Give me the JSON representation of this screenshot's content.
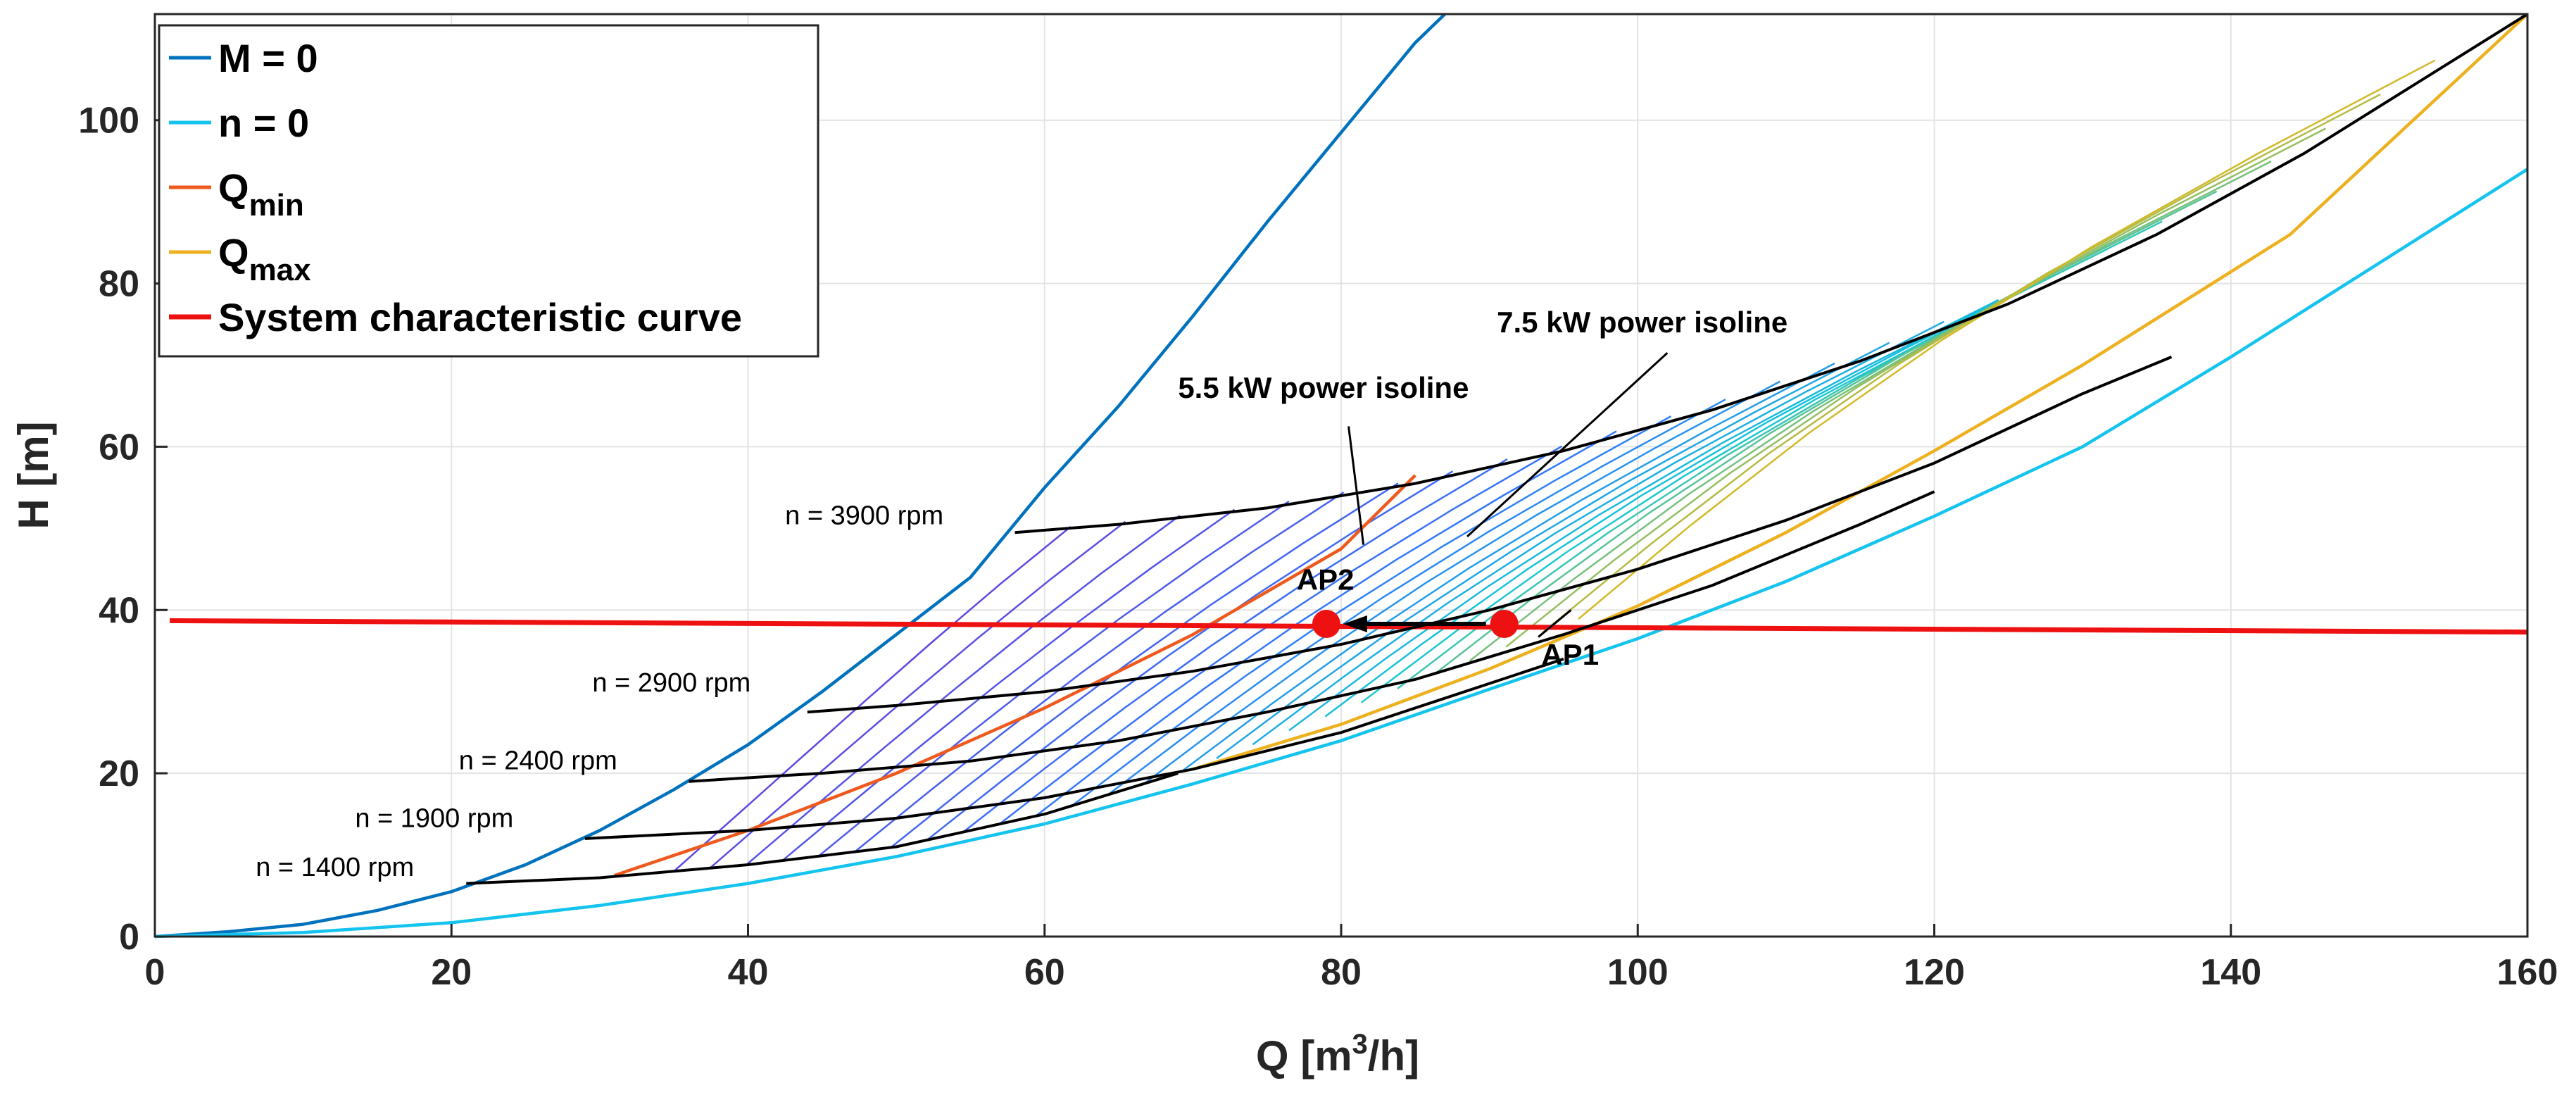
{
  "chart_data": {
    "type": "line",
    "title": "",
    "xlabel": "Q [m",
    "xlabel_sup": "3",
    "xlabel_tail": "/h]",
    "ylabel": "H [m]",
    "xlim": [
      0,
      160
    ],
    "ylim": [
      0,
      113
    ],
    "xticks": [
      0,
      20,
      40,
      60,
      80,
      100,
      120,
      140,
      160
    ],
    "yticks": [
      0,
      20,
      40,
      60,
      80,
      100
    ],
    "grid": true,
    "legend_position": "top-left",
    "legend": [
      {
        "label": "M = 0",
        "sub": "",
        "color": "#0072BD"
      },
      {
        "label": "n = 0",
        "sub": "",
        "color": "#14C4EE"
      },
      {
        "label": "Q",
        "sub": "min",
        "color": "#EE5A1E"
      },
      {
        "label": "Q",
        "sub": "max",
        "color": "#EDB120"
      },
      {
        "label": "System characteristic curve",
        "sub": "",
        "color": "#EE1111"
      }
    ],
    "series": [
      {
        "name": "M = 0",
        "color": "#0072BD",
        "x": [
          0,
          5,
          10,
          15,
          20,
          25,
          30,
          35,
          40,
          45,
          50,
          55,
          60,
          65,
          70,
          75,
          80,
          85,
          87
        ],
        "y": [
          0,
          0.6,
          1.5,
          3.2,
          5.5,
          8.8,
          13,
          18,
          23.5,
          30,
          37,
          44,
          55,
          65,
          76,
          87.5,
          98.5,
          109.5,
          113
        ]
      },
      {
        "name": "n = 0",
        "color": "#14C4EE",
        "x": [
          0,
          10,
          20,
          30,
          40,
          50,
          60,
          70,
          80,
          90,
          100,
          110,
          120,
          130,
          140,
          150,
          160
        ],
        "y": [
          0,
          0.5,
          1.7,
          3.8,
          6.5,
          9.8,
          13.8,
          18.7,
          24,
          30.3,
          36.5,
          43.5,
          51.5,
          60,
          71,
          82.5,
          94
        ]
      },
      {
        "name": "Qmin",
        "color": "#EE5A1E",
        "x": [
          31,
          40,
          50,
          60,
          70,
          80,
          85
        ],
        "y": [
          7.5,
          13,
          20,
          28,
          37,
          47.5,
          56.5
        ]
      },
      {
        "name": "Qmax",
        "color": "#EDB120",
        "x": [
          70,
          80,
          90,
          100,
          110,
          120,
          130,
          144,
          160
        ],
        "y": [
          20.5,
          26,
          32.8,
          40.5,
          49.5,
          59.5,
          70,
          86,
          113
        ]
      },
      {
        "name": "System characteristic curve",
        "color": "#EE1111",
        "x": [
          1,
          160
        ],
        "y": [
          38.7,
          37.3
        ]
      },
      {
        "name": "n = 3900 rpm",
        "color": "#000000",
        "x": [
          58,
          65,
          75,
          85,
          95,
          105,
          115,
          125,
          135,
          145,
          160
        ],
        "y": [
          49.5,
          50.5,
          52.5,
          55.5,
          59.5,
          64.5,
          70.5,
          77.5,
          86,
          96,
          113
        ]
      },
      {
        "name": "n = 2900 rpm",
        "color": "#000000",
        "x": [
          44,
          50,
          60,
          70,
          80,
          90,
          100,
          110,
          120,
          130,
          136
        ],
        "y": [
          27.5,
          28.3,
          30,
          32.5,
          35.8,
          40,
          45,
          51,
          58,
          66.5,
          71
        ]
      },
      {
        "name": "n = 2400 rpm",
        "color": "#000000",
        "x": [
          36,
          45,
          55,
          65,
          75,
          85,
          95,
          105,
          115,
          120
        ],
        "y": [
          19,
          20,
          21.5,
          24,
          27.5,
          31.5,
          37,
          43,
          50.5,
          54.5
        ]
      },
      {
        "name": "n = 1900 rpm",
        "color": "#000000",
        "x": [
          29,
          40,
          50,
          60,
          70,
          80,
          90,
          95
        ],
        "y": [
          12,
          13,
          14.5,
          17,
          20.5,
          25,
          31,
          34
        ]
      },
      {
        "name": "n = 1400 rpm",
        "color": "#000000",
        "x": [
          21,
          30,
          40,
          50,
          60,
          69
        ],
        "y": [
          6.5,
          7.2,
          8.8,
          11,
          15,
          20
        ]
      }
    ],
    "speed_labels": [
      {
        "text": "n = 3900 rpm",
        "x": 42.5,
        "y": 50.5
      },
      {
        "text": "n = 2900 rpm",
        "x": 29.5,
        "y": 30
      },
      {
        "text": "n = 2400 rpm",
        "x": 20.5,
        "y": 20.5
      },
      {
        "text": "n = 1900 rpm",
        "x": 13.5,
        "y": 13.4
      },
      {
        "text": "n = 1400 rpm",
        "x": 6.8,
        "y": 7.4
      }
    ],
    "points": [
      {
        "name": "AP2",
        "x": 79,
        "y": 38.3
      },
      {
        "name": "AP1",
        "x": 91,
        "y": 38.3
      }
    ],
    "annotations": [
      {
        "text": "5.5 kW power isoline",
        "x": 69,
        "y": 66,
        "target_x": 81.5,
        "target_y": 48,
        "from_x": 80.5,
        "from_y": 62.5
      },
      {
        "text": "7.5 kW power isoline",
        "x": 90.5,
        "y": 74,
        "target_x": 88.5,
        "target_y": 49,
        "from_x": 102,
        "from_y": 71.5
      },
      {
        "text": "AP2",
        "x": 77,
        "y": 42.5
      },
      {
        "text": "AP1",
        "x": 93.5,
        "y": 33.3
      }
    ]
  }
}
